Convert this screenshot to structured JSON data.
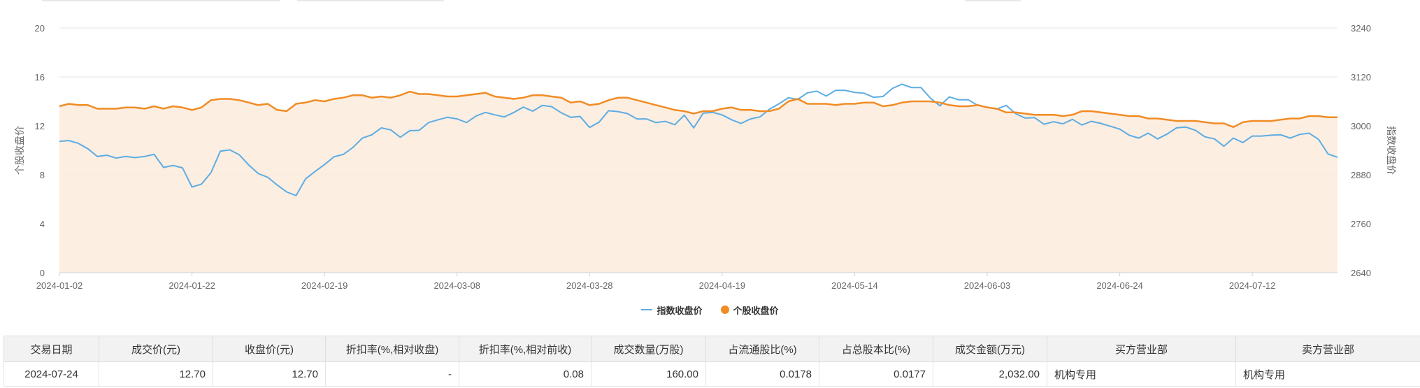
{
  "chart_data": {
    "type": "line",
    "ylabel_left": "个股收盘价",
    "ylabel_right": "指数收盘价",
    "y_left": {
      "ticks": [
        0,
        4,
        8,
        12,
        16,
        20
      ],
      "range": [
        0,
        20
      ]
    },
    "y_right": {
      "ticks": [
        2640,
        2760,
        2880,
        3000,
        3120,
        3240
      ],
      "range": [
        2640,
        3240
      ]
    },
    "x_tick_labels": [
      "2024-01-02",
      "2024-01-22",
      "2024-02-19",
      "2024-03-08",
      "2024-03-28",
      "2024-04-19",
      "2024-05-14",
      "2024-06-03",
      "2024-06-24",
      "2024-07-12"
    ],
    "x_tick_index": [
      0,
      14,
      28,
      42,
      56,
      70,
      84,
      98,
      112,
      126
    ],
    "grid": true,
    "legend_position": "bottom-center",
    "series": [
      {
        "name": "指数收盘价",
        "axis": "right",
        "color": "#5dade2",
        "values": [
          2962,
          2964,
          2957,
          2944,
          2925,
          2928,
          2921,
          2925,
          2922,
          2925,
          2930,
          2898,
          2903,
          2897,
          2850,
          2857,
          2885,
          2938,
          2941,
          2929,
          2904,
          2883,
          2874,
          2855,
          2838,
          2829,
          2870,
          2888,
          2905,
          2924,
          2930,
          2947,
          2970,
          2978,
          2995,
          2990,
          2972,
          2988,
          2989,
          3008,
          3015,
          3021,
          3017,
          3008,
          3024,
          3033,
          3027,
          3022,
          3033,
          3046,
          3036,
          3050,
          3047,
          3032,
          3021,
          3023,
          2996,
          3009,
          3037,
          3035,
          3030,
          3017,
          3017,
          3008,
          3011,
          3003,
          3026,
          2995,
          3031,
          3033,
          3027,
          3015,
          3006,
          3017,
          3022,
          3041,
          3054,
          3069,
          3065,
          3081,
          3085,
          3073,
          3087,
          3087,
          3082,
          3080,
          3070,
          3072,
          3092,
          3102,
          3094,
          3094,
          3068,
          3049,
          3071,
          3064,
          3064,
          3050,
          3046,
          3041,
          3050,
          3030,
          3019,
          3020,
          3004,
          3010,
          3005,
          3016,
          3002,
          3011,
          3006,
          2999,
          2992,
          2977,
          2970,
          2982,
          2968,
          2980,
          2995,
          2997,
          2989,
          2973,
          2968,
          2950,
          2970,
          2959,
          2975,
          2975,
          2977,
          2978,
          2970,
          2979,
          2982,
          2967,
          2931,
          2923
        ]
      },
      {
        "name": "个股收盘价",
        "axis": "left",
        "color": "#f18c25",
        "values": [
          13.6,
          13.8,
          13.7,
          13.7,
          13.4,
          13.4,
          13.4,
          13.5,
          13.5,
          13.4,
          13.6,
          13.4,
          13.6,
          13.5,
          13.3,
          13.5,
          14.1,
          14.2,
          14.2,
          14.1,
          13.9,
          13.7,
          13.8,
          13.3,
          13.2,
          13.8,
          13.9,
          14.1,
          14.0,
          14.2,
          14.3,
          14.5,
          14.5,
          14.3,
          14.4,
          14.3,
          14.5,
          14.8,
          14.6,
          14.6,
          14.5,
          14.4,
          14.4,
          14.5,
          14.6,
          14.7,
          14.4,
          14.3,
          14.2,
          14.3,
          14.5,
          14.5,
          14.4,
          14.3,
          13.9,
          14.0,
          13.7,
          13.8,
          14.1,
          14.3,
          14.3,
          14.1,
          13.9,
          13.7,
          13.5,
          13.3,
          13.2,
          13.0,
          13.2,
          13.2,
          13.4,
          13.5,
          13.3,
          13.3,
          13.2,
          13.2,
          13.4,
          14.0,
          14.2,
          13.8,
          13.8,
          13.8,
          13.7,
          13.8,
          13.8,
          13.9,
          13.9,
          13.6,
          13.7,
          13.9,
          14.0,
          14.0,
          14.0,
          13.9,
          13.7,
          13.6,
          13.6,
          13.7,
          13.5,
          13.4,
          13.1,
          13.1,
          13.0,
          12.9,
          12.9,
          12.9,
          12.8,
          12.9,
          13.2,
          13.2,
          13.1,
          13.0,
          12.9,
          12.8,
          12.8,
          12.6,
          12.6,
          12.5,
          12.4,
          12.4,
          12.4,
          12.3,
          12.2,
          12.2,
          11.9,
          12.3,
          12.4,
          12.4,
          12.4,
          12.5,
          12.6,
          12.6,
          12.8,
          12.8,
          12.7,
          12.7
        ]
      }
    ]
  },
  "legend": {
    "index_label": "指数收盘价",
    "stock_label": "个股收盘价"
  },
  "table": {
    "headers": [
      "交易日期",
      "成交价(元)",
      "收盘价(元)",
      "折扣率(%,相对收盘)",
      "折扣率(%,相对前收)",
      "成交数量(万股)",
      "占流通股比(%)",
      "占总股本比(%)",
      "成交金额(万元)",
      "买方营业部",
      "卖方营业部"
    ],
    "rows": [
      [
        "2024-07-24",
        "12.70",
        "12.70",
        "-",
        "0.08",
        "160.00",
        "0.0178",
        "0.0177",
        "2,032.00",
        "机构专用",
        "机构专用"
      ]
    ]
  }
}
